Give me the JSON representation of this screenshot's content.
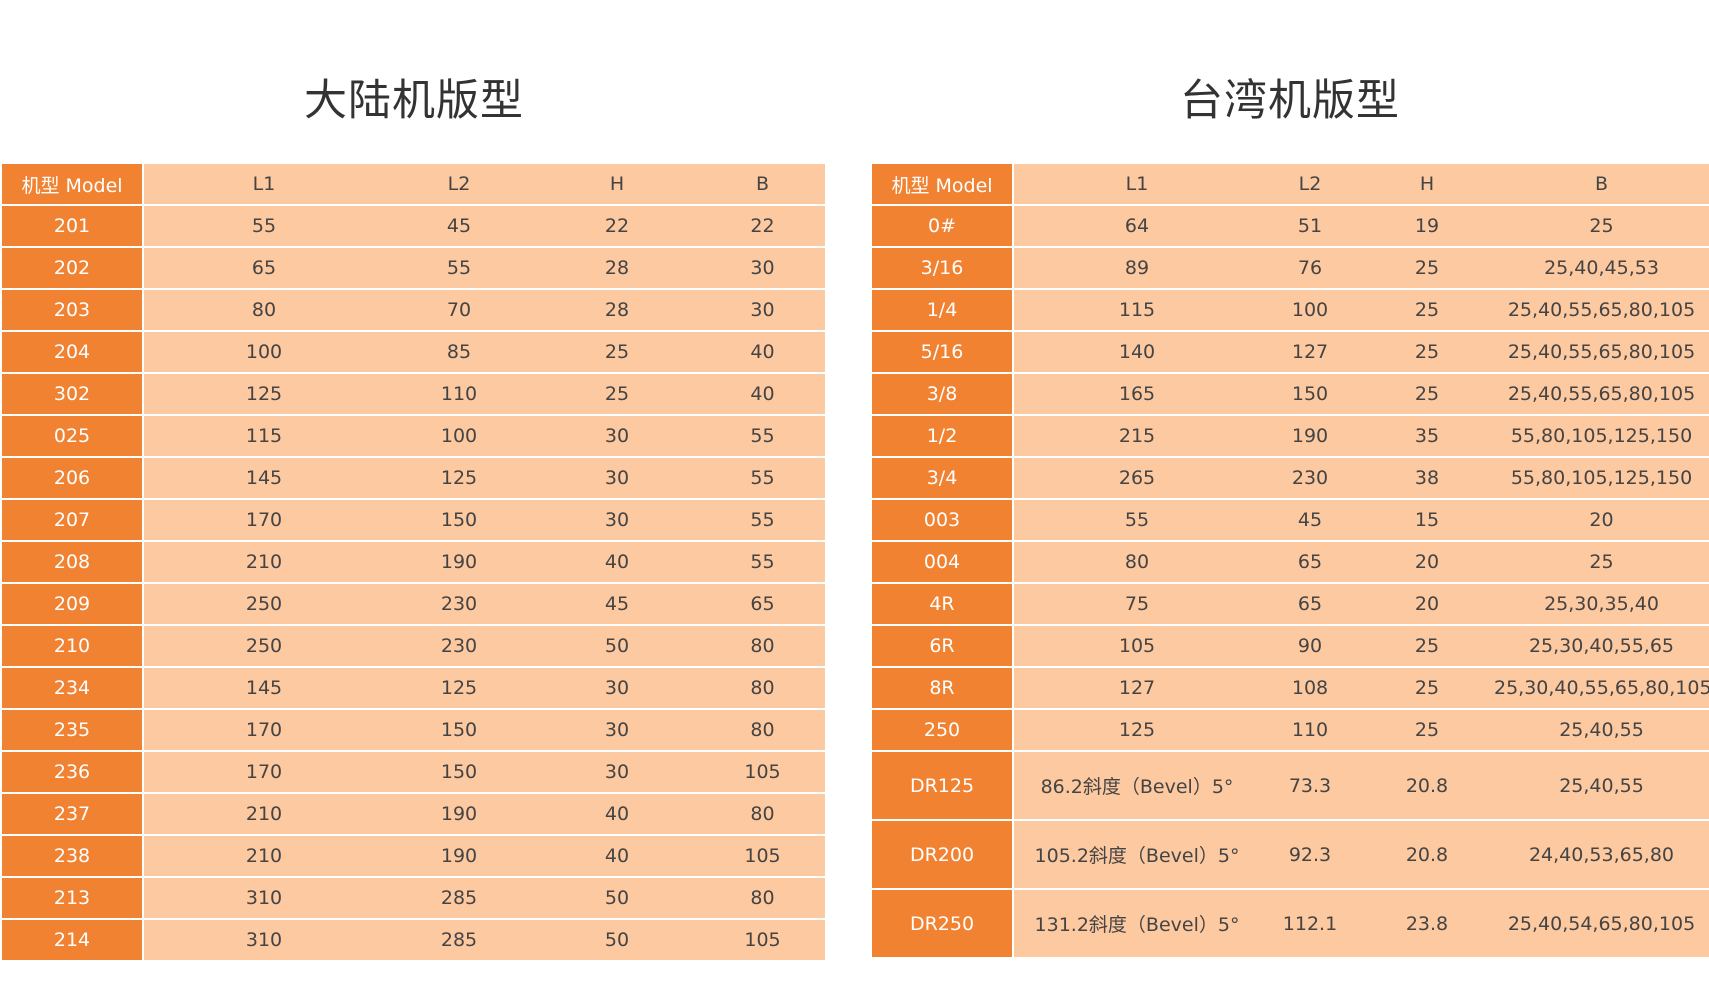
{
  "left": {
    "title": "大陆机版型",
    "headers": [
      "机型 Model",
      "L1",
      "L2",
      "H",
      "B"
    ],
    "rows": [
      [
        "201",
        "55",
        "45",
        "22",
        "22"
      ],
      [
        "202",
        "65",
        "55",
        "28",
        "30"
      ],
      [
        "203",
        "80",
        "70",
        "28",
        "30"
      ],
      [
        "204",
        "100",
        "85",
        "25",
        "40"
      ],
      [
        "302",
        "125",
        "110",
        "25",
        "40"
      ],
      [
        "025",
        "115",
        "100",
        "30",
        "55"
      ],
      [
        "206",
        "145",
        "125",
        "30",
        "55"
      ],
      [
        "207",
        "170",
        "150",
        "30",
        "55"
      ],
      [
        "208",
        "210",
        "190",
        "40",
        "55"
      ],
      [
        "209",
        "250",
        "230",
        "45",
        "65"
      ],
      [
        "210",
        "250",
        "230",
        "50",
        "80"
      ],
      [
        "234",
        "145",
        "125",
        "30",
        "80"
      ],
      [
        "235",
        "170",
        "150",
        "30",
        "80"
      ],
      [
        "236",
        "170",
        "150",
        "30",
        "105"
      ],
      [
        "237",
        "210",
        "190",
        "40",
        "80"
      ],
      [
        "238",
        "210",
        "190",
        "40",
        "105"
      ],
      [
        "213",
        "310",
        "285",
        "50",
        "80"
      ],
      [
        "214",
        "310",
        "285",
        "50",
        "105"
      ]
    ]
  },
  "right": {
    "title": "台湾机版型",
    "headers": [
      "机型 Model",
      "L1",
      "L2",
      "H",
      "B"
    ],
    "rows": [
      [
        "0#",
        "64",
        "51",
        "19",
        "25"
      ],
      [
        "3/16",
        "89",
        "76",
        "25",
        "25,40,45,53"
      ],
      [
        "1/4",
        "115",
        "100",
        "25",
        "25,40,55,65,80,105"
      ],
      [
        "5/16",
        "140",
        "127",
        "25",
        "25,40,55,65,80,105"
      ],
      [
        "3/8",
        "165",
        "150",
        "25",
        "25,40,55,65,80,105"
      ],
      [
        "1/2",
        "215",
        "190",
        "35",
        "55,80,105,125,150"
      ],
      [
        "3/4",
        "265",
        "230",
        "38",
        "55,80,105,125,150"
      ],
      [
        "003",
        "55",
        "45",
        "15",
        "20"
      ],
      [
        "004",
        "80",
        "65",
        "20",
        "25"
      ],
      [
        "4R",
        "75",
        "65",
        "20",
        "25,30,35,40"
      ],
      [
        "6R",
        "105",
        "90",
        "25",
        "25,30,40,55,65"
      ],
      [
        "8R",
        "127",
        "108",
        "25",
        "25,30,40,55,65,80,105"
      ],
      [
        "250",
        "125",
        "110",
        "25",
        "25,40,55"
      ],
      [
        "DR125",
        "86.2斜度（Bevel）5°",
        "73.3",
        "20.8",
        "25,40,55"
      ],
      [
        "DR200",
        "105.2斜度（Bevel）5°",
        "92.3",
        "20.8",
        "24,40,53,65,80"
      ],
      [
        "DR250",
        "131.2斜度（Bevel）5°",
        "112.1",
        "23.8",
        "25,40,54,65,80,105"
      ]
    ]
  },
  "colors": {
    "model_column": "#f08232",
    "cell_background": "#fdc9a1"
  }
}
